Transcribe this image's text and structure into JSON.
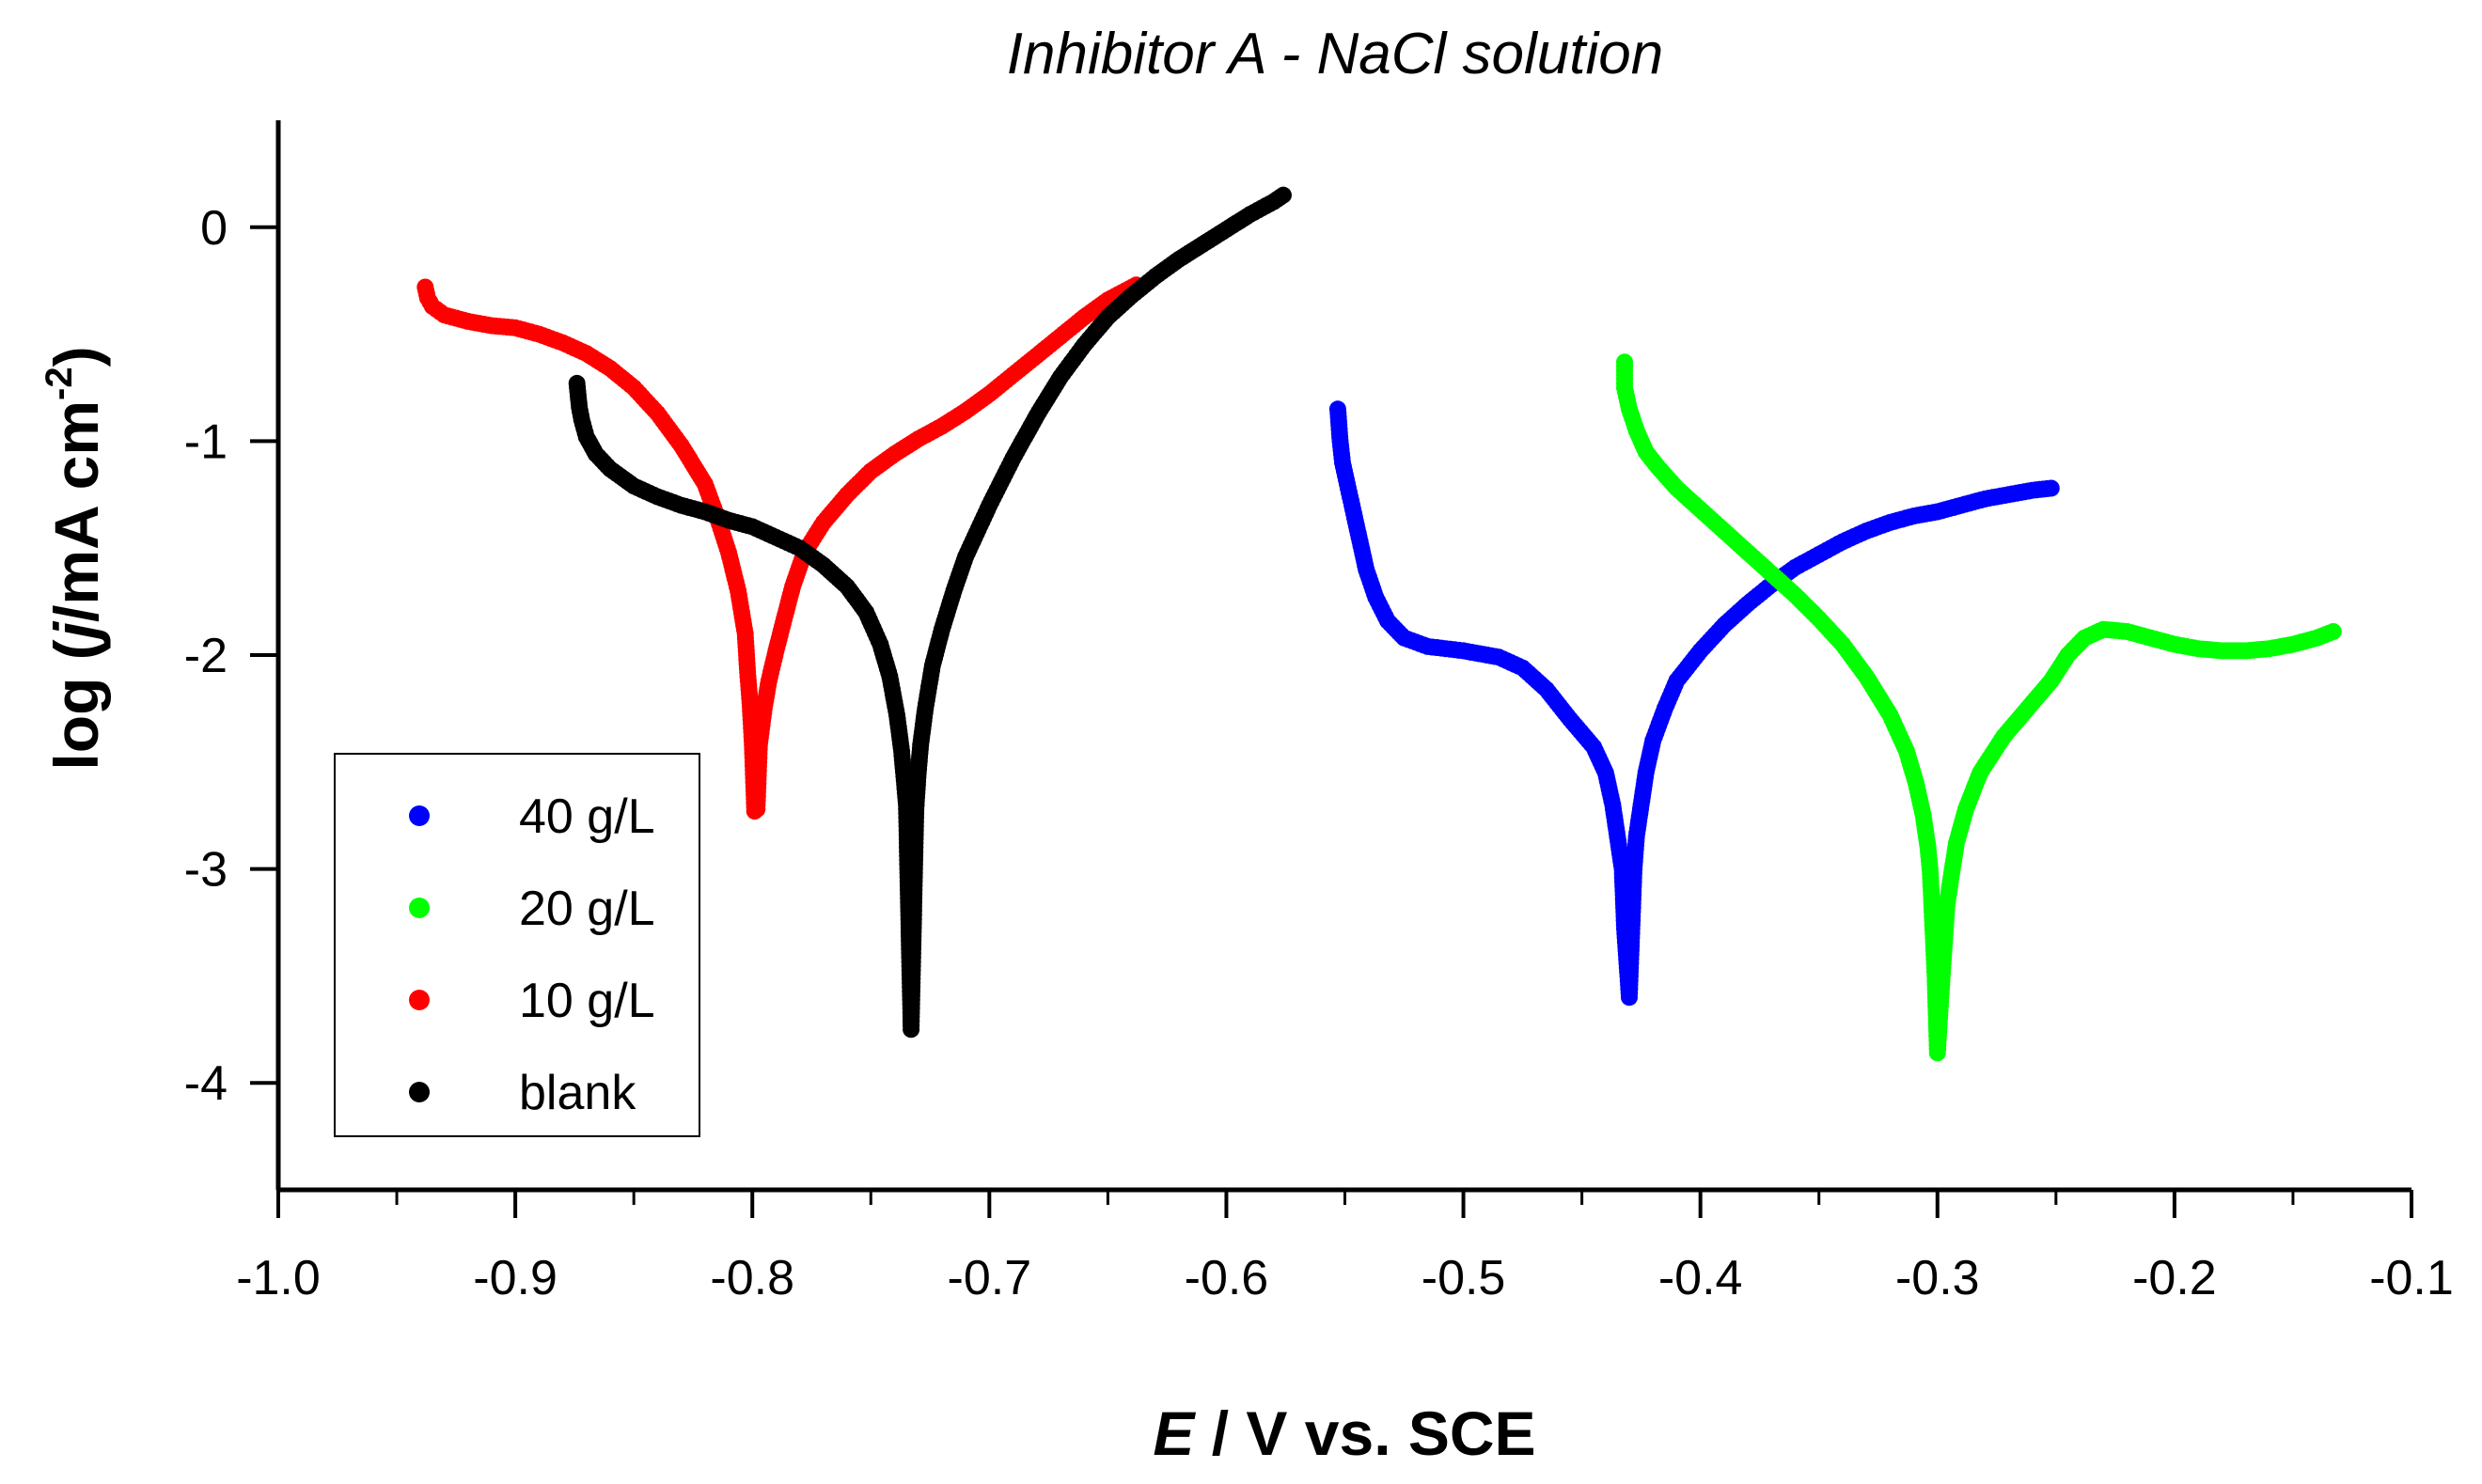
{
  "chart_data": {
    "type": "scatter",
    "title": "Inhibitor A - NaCl solution",
    "xlabel": {
      "italic_part": "E",
      "rest": " / V vs. SCE"
    },
    "ylabel": {
      "prefix": "log (",
      "italic_part": "j",
      "middle": "/mA cm",
      "superscript": "-2",
      "suffix": ")"
    },
    "xlim": [
      -1.0,
      -0.1
    ],
    "ylim": [
      -4.5,
      0.5
    ],
    "x_ticks": [
      -1.0,
      -0.9,
      -0.8,
      -0.7,
      -0.6,
      -0.5,
      -0.4,
      -0.3,
      -0.2,
      -0.1
    ],
    "x_tick_labels": [
      "-1.0",
      "-0.9",
      "-0.8",
      "-0.7",
      "-0.6",
      "-0.5",
      "-0.4",
      "-0.3",
      "-0.2",
      "-0.1"
    ],
    "y_ticks": [
      0,
      -1,
      -2,
      -3,
      -4
    ],
    "y_tick_labels": [
      "0",
      "-1",
      "-2",
      "-3",
      "-4"
    ],
    "grid": false,
    "legend_position": "bottom-left",
    "series": [
      {
        "name": "40 g/L",
        "color": "#0000ff",
        "points": [
          [
            -0.553,
            -0.85
          ],
          [
            -0.552,
            -1.0
          ],
          [
            -0.551,
            -1.1
          ],
          [
            -0.549,
            -1.2
          ],
          [
            -0.547,
            -1.3
          ],
          [
            -0.544,
            -1.45
          ],
          [
            -0.541,
            -1.6
          ],
          [
            -0.537,
            -1.73
          ],
          [
            -0.532,
            -1.84
          ],
          [
            -0.525,
            -1.92
          ],
          [
            -0.515,
            -1.96
          ],
          [
            -0.5,
            -1.98
          ],
          [
            -0.485,
            -2.01
          ],
          [
            -0.475,
            -2.06
          ],
          [
            -0.465,
            -2.16
          ],
          [
            -0.455,
            -2.3
          ],
          [
            -0.445,
            -2.43
          ],
          [
            -0.44,
            -2.55
          ],
          [
            -0.437,
            -2.7
          ],
          [
            -0.435,
            -2.85
          ],
          [
            -0.433,
            -3.0
          ],
          [
            -0.432,
            -3.28
          ],
          [
            -0.43,
            -3.6
          ],
          [
            -0.428,
            -3.0
          ],
          [
            -0.427,
            -2.85
          ],
          [
            -0.425,
            -2.7
          ],
          [
            -0.423,
            -2.55
          ],
          [
            -0.42,
            -2.4
          ],
          [
            -0.415,
            -2.25
          ],
          [
            -0.41,
            -2.12
          ],
          [
            -0.4,
            -1.98
          ],
          [
            -0.39,
            -1.86
          ],
          [
            -0.38,
            -1.76
          ],
          [
            -0.37,
            -1.67
          ],
          [
            -0.36,
            -1.59
          ],
          [
            -0.35,
            -1.53
          ],
          [
            -0.34,
            -1.47
          ],
          [
            -0.33,
            -1.42
          ],
          [
            -0.32,
            -1.38
          ],
          [
            -0.31,
            -1.35
          ],
          [
            -0.3,
            -1.33
          ],
          [
            -0.29,
            -1.3
          ],
          [
            -0.28,
            -1.27
          ],
          [
            -0.27,
            -1.25
          ],
          [
            -0.26,
            -1.23
          ],
          [
            -0.252,
            -1.22
          ]
        ]
      },
      {
        "name": "20 g/L",
        "color": "#00ff00",
        "points": [
          [
            -0.432,
            -0.63
          ],
          [
            -0.432,
            -0.75
          ],
          [
            -0.43,
            -0.85
          ],
          [
            -0.427,
            -0.95
          ],
          [
            -0.423,
            -1.05
          ],
          [
            -0.418,
            -1.12
          ],
          [
            -0.41,
            -1.22
          ],
          [
            -0.4,
            -1.32
          ],
          [
            -0.39,
            -1.42
          ],
          [
            -0.38,
            -1.52
          ],
          [
            -0.37,
            -1.62
          ],
          [
            -0.36,
            -1.72
          ],
          [
            -0.35,
            -1.83
          ],
          [
            -0.34,
            -1.95
          ],
          [
            -0.33,
            -2.1
          ],
          [
            -0.32,
            -2.28
          ],
          [
            -0.313,
            -2.45
          ],
          [
            -0.309,
            -2.6
          ],
          [
            -0.306,
            -2.75
          ],
          [
            -0.304,
            -2.9
          ],
          [
            -0.303,
            -3.02
          ],
          [
            -0.301,
            -3.5
          ],
          [
            -0.3,
            -3.86
          ],
          [
            -0.298,
            -3.5
          ],
          [
            -0.296,
            -3.17
          ],
          [
            -0.294,
            -3.02
          ],
          [
            -0.292,
            -2.88
          ],
          [
            -0.288,
            -2.72
          ],
          [
            -0.282,
            -2.55
          ],
          [
            -0.272,
            -2.38
          ],
          [
            -0.262,
            -2.25
          ],
          [
            -0.252,
            -2.12
          ],
          [
            -0.245,
            -2.0
          ],
          [
            -0.238,
            -1.92
          ],
          [
            -0.23,
            -1.88
          ],
          [
            -0.22,
            -1.89
          ],
          [
            -0.21,
            -1.92
          ],
          [
            -0.2,
            -1.95
          ],
          [
            -0.19,
            -1.97
          ],
          [
            -0.18,
            -1.98
          ],
          [
            -0.17,
            -1.98
          ],
          [
            -0.16,
            -1.97
          ],
          [
            -0.15,
            -1.95
          ],
          [
            -0.14,
            -1.92
          ],
          [
            -0.133,
            -1.89
          ]
        ]
      },
      {
        "name": "10 g/L",
        "color": "#ff0000",
        "points": [
          [
            -0.938,
            -0.28
          ],
          [
            -0.937,
            -0.33
          ],
          [
            -0.935,
            -0.37
          ],
          [
            -0.93,
            -0.41
          ],
          [
            -0.92,
            -0.44
          ],
          [
            -0.91,
            -0.46
          ],
          [
            -0.9,
            -0.47
          ],
          [
            -0.89,
            -0.5
          ],
          [
            -0.88,
            -0.54
          ],
          [
            -0.87,
            -0.59
          ],
          [
            -0.86,
            -0.66
          ],
          [
            -0.85,
            -0.75
          ],
          [
            -0.84,
            -0.87
          ],
          [
            -0.83,
            -1.02
          ],
          [
            -0.82,
            -1.2
          ],
          [
            -0.815,
            -1.35
          ],
          [
            -0.81,
            -1.52
          ],
          [
            -0.806,
            -1.7
          ],
          [
            -0.803,
            -1.9
          ],
          [
            -0.802,
            -2.08
          ],
          [
            -0.801,
            -2.22
          ],
          [
            -0.8,
            -2.42
          ],
          [
            -0.799,
            -2.73
          ],
          [
            -0.798,
            -2.72
          ],
          [
            -0.797,
            -2.42
          ],
          [
            -0.795,
            -2.25
          ],
          [
            -0.793,
            -2.12
          ],
          [
            -0.79,
            -1.98
          ],
          [
            -0.787,
            -1.85
          ],
          [
            -0.783,
            -1.68
          ],
          [
            -0.778,
            -1.52
          ],
          [
            -0.77,
            -1.38
          ],
          [
            -0.76,
            -1.25
          ],
          [
            -0.75,
            -1.14
          ],
          [
            -0.74,
            -1.06
          ],
          [
            -0.73,
            -0.99
          ],
          [
            -0.72,
            -0.93
          ],
          [
            -0.71,
            -0.86
          ],
          [
            -0.7,
            -0.78
          ],
          [
            -0.69,
            -0.69
          ],
          [
            -0.68,
            -0.6
          ],
          [
            -0.67,
            -0.51
          ],
          [
            -0.66,
            -0.42
          ],
          [
            -0.65,
            -0.34
          ],
          [
            -0.638,
            -0.27
          ]
        ]
      },
      {
        "name": "blank",
        "color": "#000000",
        "points": [
          [
            -0.874,
            -0.73
          ],
          [
            -0.873,
            -0.84
          ],
          [
            -0.872,
            -0.9
          ],
          [
            -0.87,
            -0.98
          ],
          [
            -0.866,
            -1.06
          ],
          [
            -0.86,
            -1.13
          ],
          [
            -0.85,
            -1.21
          ],
          [
            -0.84,
            -1.26
          ],
          [
            -0.83,
            -1.3
          ],
          [
            -0.82,
            -1.33
          ],
          [
            -0.81,
            -1.37
          ],
          [
            -0.8,
            -1.4
          ],
          [
            -0.79,
            -1.45
          ],
          [
            -0.78,
            -1.5
          ],
          [
            -0.77,
            -1.58
          ],
          [
            -0.76,
            -1.68
          ],
          [
            -0.752,
            -1.8
          ],
          [
            -0.746,
            -1.95
          ],
          [
            -0.742,
            -2.1
          ],
          [
            -0.739,
            -2.28
          ],
          [
            -0.737,
            -2.45
          ],
          [
            -0.735,
            -2.7
          ],
          [
            -0.733,
            -3.75
          ],
          [
            -0.731,
            -2.72
          ],
          [
            -0.73,
            -2.55
          ],
          [
            -0.729,
            -2.42
          ],
          [
            -0.727,
            -2.25
          ],
          [
            -0.724,
            -2.05
          ],
          [
            -0.72,
            -1.88
          ],
          [
            -0.715,
            -1.7
          ],
          [
            -0.71,
            -1.54
          ],
          [
            -0.7,
            -1.3
          ],
          [
            -0.69,
            -1.08
          ],
          [
            -0.68,
            -0.88
          ],
          [
            -0.67,
            -0.7
          ],
          [
            -0.66,
            -0.55
          ],
          [
            -0.65,
            -0.42
          ],
          [
            -0.64,
            -0.32
          ],
          [
            -0.63,
            -0.23
          ],
          [
            -0.62,
            -0.15
          ],
          [
            -0.61,
            -0.08
          ],
          [
            -0.6,
            -0.01
          ],
          [
            -0.59,
            0.06
          ],
          [
            -0.58,
            0.12
          ],
          [
            -0.576,
            0.15
          ]
        ]
      }
    ]
  }
}
